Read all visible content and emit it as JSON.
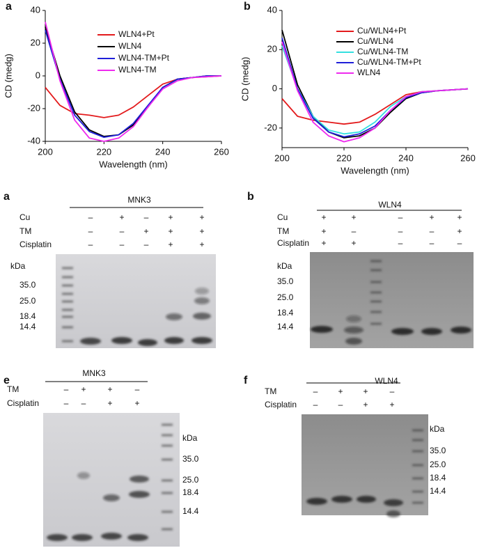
{
  "chart_data": [
    {
      "type": "line",
      "panel": "a",
      "x_label": "Wavelength (nm)",
      "y_label": "CD (medg)",
      "x": [
        200,
        205,
        210,
        215,
        220,
        225,
        230,
        235,
        240,
        245,
        250,
        255,
        260
      ],
      "xlim": [
        200,
        260
      ],
      "xticks": [
        200,
        220,
        240,
        260
      ],
      "ylim": [
        -40,
        40
      ],
      "yticks": [
        -40,
        -20,
        0,
        20,
        40
      ],
      "grid": false,
      "series": [
        {
          "name": "WLN4+Pt",
          "color": "#e31a1c",
          "values": [
            -7,
            -18,
            -23,
            -24,
            -25.5,
            -24,
            -19,
            -12,
            -5,
            -2,
            -1,
            -0.5,
            0
          ]
        },
        {
          "name": "WLN4",
          "color": "#000000",
          "values": [
            30,
            0,
            -22,
            -33,
            -37,
            -36,
            -30,
            -19,
            -7,
            -2,
            -1,
            0,
            0
          ]
        },
        {
          "name": "WLN4-TM+Pt",
          "color": "#1f1fd9",
          "values": [
            28,
            -2,
            -24,
            -34,
            -37.5,
            -36,
            -29,
            -18,
            -7,
            -2,
            -1,
            0,
            0
          ]
        },
        {
          "name": "WLN4-TM",
          "color": "#ee2aee",
          "values": [
            33,
            -3,
            -27,
            -38,
            -40,
            -38,
            -31,
            -19,
            -8,
            -3,
            -1,
            -0.5,
            0
          ]
        }
      ]
    },
    {
      "type": "line",
      "panel": "b",
      "x_label": "Wavelength (nm)",
      "y_label": "CD (medg)",
      "x": [
        200,
        205,
        210,
        215,
        220,
        225,
        230,
        235,
        240,
        245,
        250,
        255,
        260
      ],
      "xlim": [
        200,
        260
      ],
      "xticks": [
        200,
        220,
        240,
        260
      ],
      "ylim": [
        -30,
        40
      ],
      "yticks": [
        -20,
        0,
        20,
        40
      ],
      "grid": false,
      "series": [
        {
          "name": "Cu/WLN4+Pt",
          "color": "#e31a1c",
          "values": [
            -5,
            -14,
            -16,
            -17,
            -18,
            -17,
            -13,
            -8,
            -3,
            -1.5,
            -1,
            -0.5,
            0
          ]
        },
        {
          "name": "Cu/WLN4",
          "color": "#000000",
          "values": [
            30,
            2,
            -14,
            -22,
            -25,
            -24,
            -20,
            -12,
            -5,
            -2,
            -1,
            -0.5,
            0
          ]
        },
        {
          "name": "Cu/WLN4-TM",
          "color": "#33e0e0",
          "values": [
            22,
            0,
            -14,
            -21,
            -23,
            -22,
            -17,
            -9,
            -4,
            -1.5,
            -1,
            -0.5,
            0
          ]
        },
        {
          "name": "Cu/WLN4-TM+Pt",
          "color": "#1f1fd9",
          "values": [
            26,
            0,
            -15,
            -22,
            -24.5,
            -23,
            -19,
            -11,
            -4.5,
            -2,
            -1,
            -0.5,
            0
          ]
        },
        {
          "name": "WLN4",
          "color": "#ee2aee",
          "values": [
            24,
            -1,
            -17,
            -24,
            -27,
            -25,
            -20,
            -11,
            -4,
            -1.5,
            -1,
            -0.5,
            0
          ]
        }
      ]
    }
  ],
  "gels": [
    {
      "panel": "a",
      "title": "MNK3",
      "unit": "kDa",
      "markers": [
        "35.0",
        "25.0",
        "18.4",
        "14.4"
      ],
      "rows": [
        {
          "label": "Cu",
          "signs": [
            "–",
            "+",
            "–",
            "+",
            "+"
          ]
        },
        {
          "label": "TM",
          "signs": [
            "–",
            "–",
            "+",
            "+",
            "+"
          ]
        },
        {
          "label": "Cisplatin",
          "signs": [
            "–",
            "–",
            "–",
            "+",
            "+"
          ]
        }
      ]
    },
    {
      "panel": "b",
      "title": "WLN4",
      "unit": "kDa",
      "markers": [
        "35.0",
        "25.0",
        "18.4",
        "14.4"
      ],
      "rows": [
        {
          "label": "Cu",
          "signs": [
            "+",
            "+",
            "–",
            "+",
            "+"
          ]
        },
        {
          "label": "TM",
          "signs": [
            "+",
            "–",
            "–",
            "–",
            "+"
          ]
        },
        {
          "label": "Cisplatin",
          "signs": [
            "+",
            "+",
            "–",
            "–",
            "–"
          ]
        }
      ]
    },
    {
      "panel": "e",
      "title": "MNK3",
      "unit": "kDa",
      "markers": [
        "35.0",
        "25.0",
        "18.4",
        "14.4"
      ],
      "rows": [
        {
          "label": "TM",
          "signs": [
            "–",
            "+",
            "+",
            "–"
          ]
        },
        {
          "label": "Cisplatin",
          "signs": [
            "–",
            "–",
            "+",
            "+"
          ]
        }
      ]
    },
    {
      "panel": "f",
      "title": "WLN4",
      "unit": "kDa",
      "markers": [
        "35.0",
        "25.0",
        "18.4",
        "14.4"
      ],
      "rows": [
        {
          "label": "TM",
          "signs": [
            "–",
            "+",
            "+",
            "–"
          ]
        },
        {
          "label": "Cisplatin",
          "signs": [
            "–",
            "–",
            "+",
            "+"
          ]
        }
      ]
    }
  ]
}
